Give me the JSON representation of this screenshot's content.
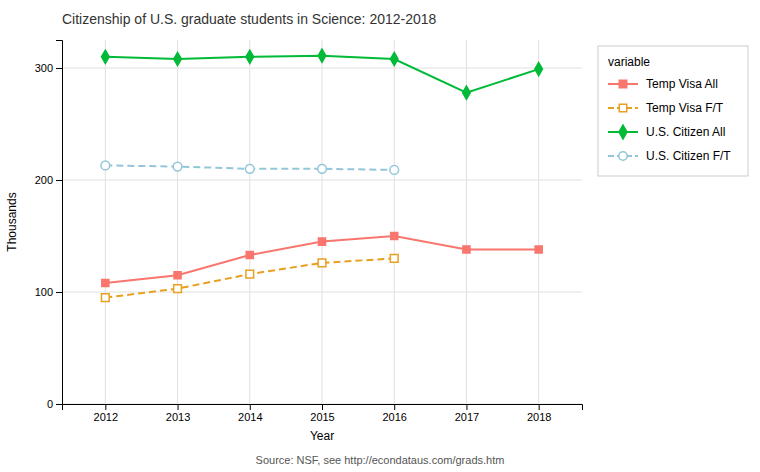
{
  "chart_data": {
    "type": "line",
    "title": "Citizenship of U.S. graduate students in Science: 2012-2018",
    "xlabel": "Year",
    "ylabel": "Thousands",
    "caption": "Source: NSF, see http://econdataus.com/grads.htm",
    "legend_title": "variable",
    "x": [
      2012,
      2013,
      2014,
      2015,
      2016,
      2017,
      2018
    ],
    "series": [
      {
        "name": "Temp Visa All",
        "color": "#F8766D",
        "marker": "square",
        "line_style": "solid",
        "values": [
          108,
          115,
          133,
          145,
          150,
          138,
          138
        ]
      },
      {
        "name": "Temp Visa F/T",
        "color": "#E8A020",
        "marker": "open-square",
        "line_style": "dashed",
        "values": [
          95,
          103,
          116,
          126,
          130,
          null,
          null
        ]
      },
      {
        "name": "U.S. Citizen All",
        "color": "#00BA38",
        "marker": "diamond",
        "line_style": "solid",
        "values": [
          310,
          308,
          310,
          311,
          308,
          278,
          299
        ]
      },
      {
        "name": "U.S. Citizen F/T",
        "color": "#93C6D8",
        "marker": "open-circle",
        "line_style": "dashed",
        "values": [
          213,
          212,
          210,
          210,
          209,
          null,
          null
        ]
      }
    ],
    "xlim": [
      2011.4,
      2018.6
    ],
    "xticks": [
      2012,
      2013,
      2014,
      2015,
      2016,
      2017,
      2018
    ],
    "ylim": [
      0,
      325
    ],
    "yticks": [
      0,
      100,
      200,
      300
    ],
    "grid": true,
    "legend": "right"
  }
}
